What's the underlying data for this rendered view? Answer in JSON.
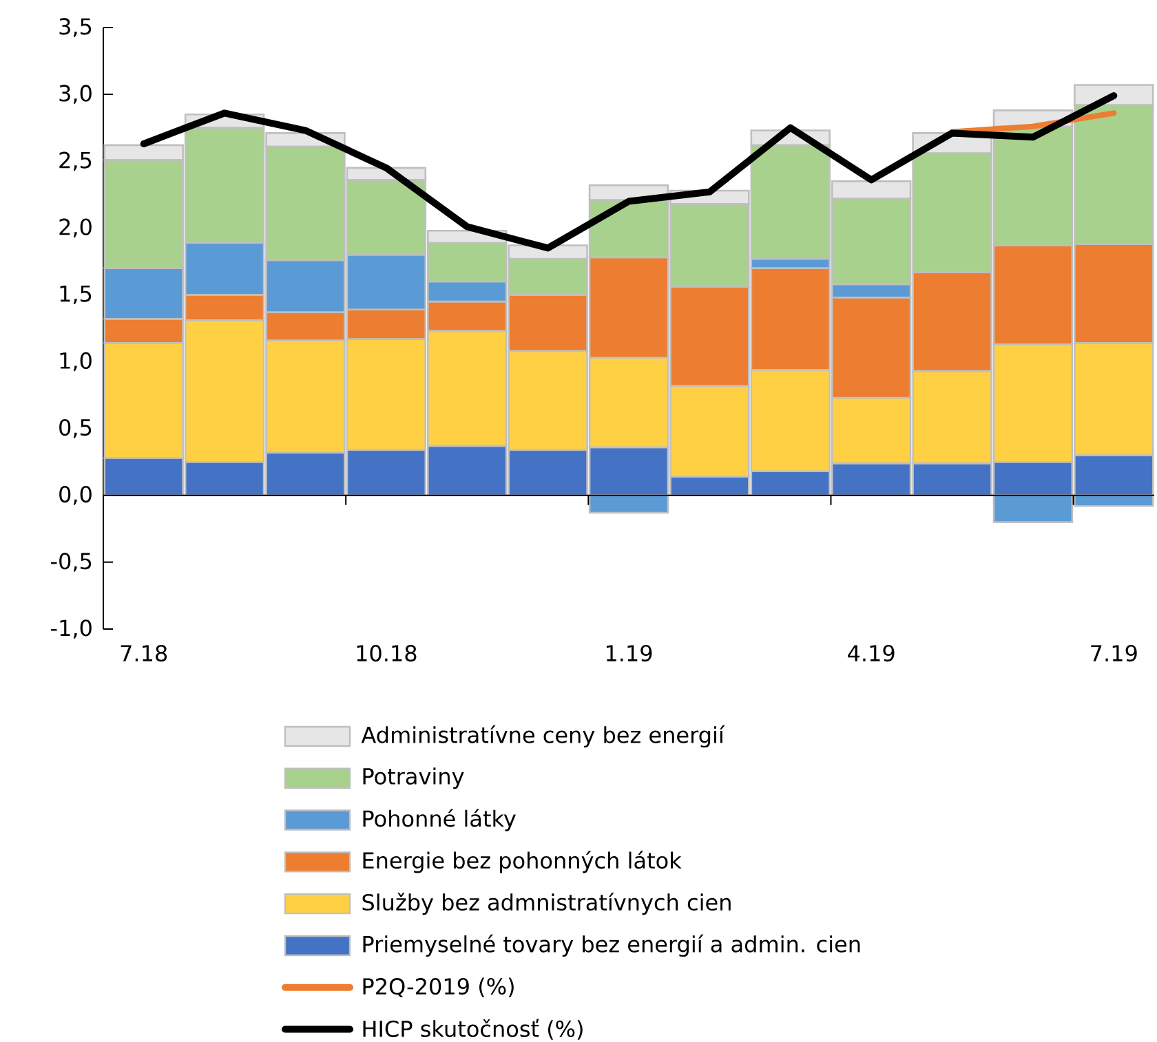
{
  "chart_data": {
    "type": "bar",
    "stacked": true,
    "legend": "bottom",
    "categories": [
      "7.18",
      null,
      null,
      "10.18",
      null,
      null,
      "1.19",
      null,
      null,
      "4.19",
      null,
      null,
      "7.19"
    ],
    "ylim": [
      -1,
      3.5
    ],
    "yticks": [
      {
        "value": -1,
        "label": "-1,0"
      },
      {
        "value": -0.5,
        "label": "-0,5"
      },
      {
        "value": 0,
        "label": "0,0"
      },
      {
        "value": 0.5,
        "label": "0,5"
      },
      {
        "value": 1,
        "label": "1,0"
      },
      {
        "value": 1.5,
        "label": "1,5"
      },
      {
        "value": 2,
        "label": "2,0"
      },
      {
        "value": 2.5,
        "label": "2,5"
      },
      {
        "value": 3,
        "label": "3,0"
      },
      {
        "value": 3.5,
        "label": "3,5"
      }
    ],
    "series": [
      {
        "name": "Priemyselné tovary bez energií a admin. cien",
        "color": "#4472c4",
        "values": [
          0.28,
          0.25,
          0.32,
          0.34,
          0.37,
          0.34,
          0.36,
          0.14,
          0.18,
          0.24,
          0.24,
          0.25,
          0.3
        ]
      },
      {
        "name": "Služby bez admnistratívnych cien",
        "color": "#ffd043",
        "values": [
          0.86,
          1.06,
          0.84,
          0.83,
          0.86,
          0.74,
          0.67,
          0.68,
          0.76,
          0.49,
          0.69,
          0.88,
          0.84
        ]
      },
      {
        "name": "Energie bez pohonných látok",
        "color": "#ed7d31",
        "values": [
          0.18,
          0.19,
          0.21,
          0.22,
          0.22,
          0.42,
          0.75,
          0.74,
          0.76,
          0.75,
          0.74,
          0.74,
          0.74
        ]
      },
      {
        "name": "Pohonné látky",
        "color": "#5b9bd5",
        "values": [
          0.38,
          0.39,
          0.39,
          0.41,
          0.15,
          0,
          -0.13,
          0,
          0.07,
          0.1,
          0,
          -0.2,
          -0.08
        ]
      },
      {
        "name": "Potraviny",
        "color": "#a9d18e",
        "values": [
          0.81,
          0.86,
          0.85,
          0.56,
          0.29,
          0.27,
          0.43,
          0.62,
          0.85,
          0.64,
          0.89,
          0.89,
          1.04
        ]
      },
      {
        "name": "Administratívne ceny bez energií",
        "color": "#e7e6e6",
        "values": [
          0.11,
          0.1,
          0.1,
          0.09,
          0.09,
          0.1,
          0.11,
          0.1,
          0.11,
          0.13,
          0.15,
          0.12,
          0.15
        ]
      },
      {
        "name": "P2Q-2019 (%)",
        "type": "line",
        "color": "#ed7d31",
        "values": [
          null,
          null,
          null,
          null,
          null,
          null,
          null,
          null,
          null,
          null,
          2.72,
          2.76,
          2.86
        ]
      },
      {
        "name": "HICP skutočnosť (%)",
        "type": "line",
        "color": "#000000",
        "values": [
          2.63,
          2.86,
          2.73,
          2.45,
          2.01,
          1.85,
          2.2,
          2.27,
          2.75,
          2.36,
          2.71,
          2.68,
          2.99
        ]
      }
    ]
  }
}
